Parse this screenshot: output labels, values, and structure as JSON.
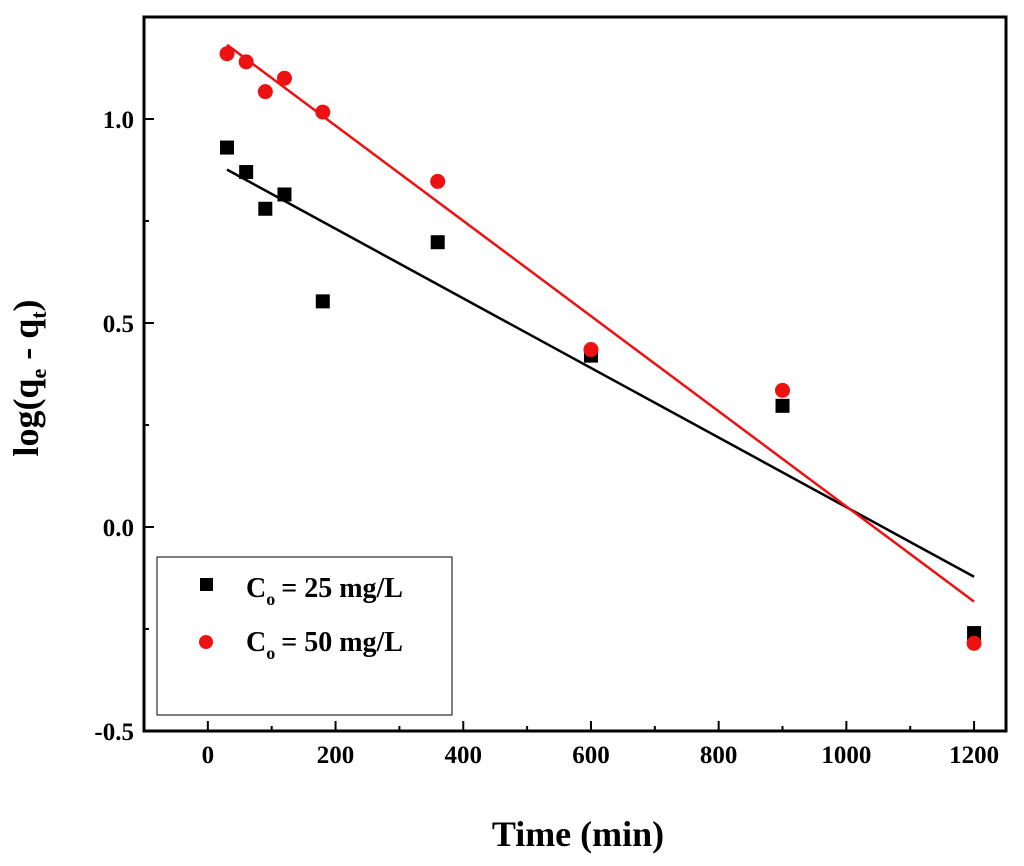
{
  "chart_data": {
    "type": "scatter",
    "title": "",
    "xlabel": "Time (min)",
    "ylabel": {
      "prefix": "log(q",
      "sub1": "e",
      "middle": " - q",
      "sub2": "t",
      "suffix": ")"
    },
    "xlim": [
      -100,
      1250
    ],
    "ylim": [
      -0.5,
      1.25
    ],
    "xticks": [
      0,
      200,
      400,
      600,
      800,
      1000,
      1200
    ],
    "xtick_labels": [
      "0",
      "200",
      "400",
      "600",
      "800",
      "1000",
      "1200"
    ],
    "yticks": [
      -0.5,
      0.0,
      0.5,
      1.0
    ],
    "ytick_labels": [
      "-0.5",
      "0.0",
      "0.5",
      "1.0"
    ],
    "legend_position": "bottom-left",
    "series": [
      {
        "name": "C_o = 25 mg/L",
        "label_main": "C",
        "label_sub": "o",
        "label_rest": "= 25 mg/L",
        "marker": "square",
        "color": "#000000",
        "x": [
          30,
          60,
          90,
          120,
          180,
          360,
          600,
          900,
          1200
        ],
        "y": [
          0.93,
          0.87,
          0.78,
          0.815,
          0.553,
          0.698,
          0.42,
          0.297,
          -0.26
        ],
        "fit": {
          "x": [
            30,
            1200
          ],
          "y": [
            0.876,
            -0.122
          ]
        }
      },
      {
        "name": "C_o = 50 mg/L",
        "label_main": "C",
        "label_sub": "o",
        "label_rest": "= 50 mg/L",
        "marker": "circle",
        "color": "#ee1111",
        "x": [
          30,
          60,
          90,
          120,
          180,
          360,
          600,
          900,
          1200
        ],
        "y": [
          1.16,
          1.14,
          1.067,
          1.1,
          1.017,
          0.847,
          0.435,
          0.335,
          -0.285
        ],
        "fit": {
          "x": [
            30,
            1200
          ],
          "y": [
            1.182,
            -0.183
          ]
        }
      }
    ]
  }
}
